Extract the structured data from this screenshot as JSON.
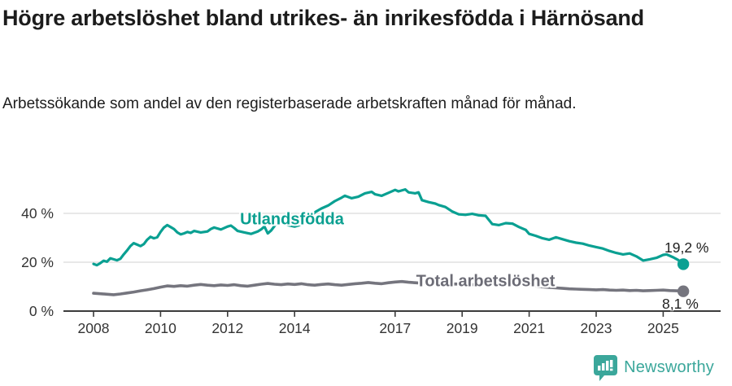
{
  "header": {
    "title": "Högre arbetslöshet bland utrikes- än inrikesfödda i Härnösand",
    "subtitle": "Arbetssökande som andel av den registerbaserade arbetskraften månad för månad."
  },
  "chart_data": {
    "type": "line",
    "title": "Högre arbetslöshet bland utrikes- än inrikesfödda i Härnösand",
    "subtitle": "Arbetssökande som andel av den registerbaserade arbetskraften månad för månad.",
    "xlabel": "",
    "ylabel": "",
    "x_axis": {
      "ticks": [
        "2008",
        "2010",
        "2012",
        "2014",
        "2017",
        "2019",
        "2021",
        "2023",
        "2025"
      ],
      "tick_values": [
        2008,
        2010,
        2012,
        2014,
        2017,
        2019,
        2021,
        2023,
        2025
      ],
      "range": [
        2007.1,
        2026.7
      ]
    },
    "y_axis": {
      "tick_labels": [
        "0 %",
        "20 %",
        "40 %"
      ],
      "tick_values": [
        0,
        20,
        40
      ],
      "gridline_values": [
        20,
        40
      ],
      "range": [
        0,
        55
      ],
      "unit": "%"
    },
    "grid": "horizontal-only",
    "legend_position": "inline-labels",
    "series": [
      {
        "name": "Utlandsfödda",
        "color": "#0aa092",
        "end_label": "19,2 %",
        "end_value": 19.2,
        "points": [
          [
            2008.0,
            19.3
          ],
          [
            2008.1,
            18.8
          ],
          [
            2008.2,
            19.6
          ],
          [
            2008.3,
            20.6
          ],
          [
            2008.4,
            20.2
          ],
          [
            2008.5,
            21.6
          ],
          [
            2008.6,
            21.2
          ],
          [
            2008.7,
            20.8
          ],
          [
            2008.8,
            21.4
          ],
          [
            2008.9,
            23.2
          ],
          [
            2009.0,
            24.8
          ],
          [
            2009.1,
            26.6
          ],
          [
            2009.2,
            27.8
          ],
          [
            2009.3,
            27.2
          ],
          [
            2009.4,
            26.6
          ],
          [
            2009.5,
            27.4
          ],
          [
            2009.6,
            29.2
          ],
          [
            2009.7,
            30.4
          ],
          [
            2009.8,
            29.8
          ],
          [
            2009.9,
            30.2
          ],
          [
            2010.0,
            32.4
          ],
          [
            2010.1,
            34.2
          ],
          [
            2010.2,
            35.2
          ],
          [
            2010.3,
            34.4
          ],
          [
            2010.4,
            33.6
          ],
          [
            2010.5,
            32.2
          ],
          [
            2010.6,
            31.4
          ],
          [
            2010.7,
            31.8
          ],
          [
            2010.8,
            32.4
          ],
          [
            2010.9,
            32.0
          ],
          [
            2011.0,
            32.8
          ],
          [
            2011.2,
            32.2
          ],
          [
            2011.4,
            32.6
          ],
          [
            2011.5,
            33.6
          ],
          [
            2011.6,
            34.2
          ],
          [
            2011.8,
            33.4
          ],
          [
            2012.0,
            34.6
          ],
          [
            2012.1,
            35.0
          ],
          [
            2012.2,
            34.0
          ],
          [
            2012.3,
            32.8
          ],
          [
            2012.5,
            32.2
          ],
          [
            2012.7,
            31.6
          ],
          [
            2012.9,
            32.6
          ],
          [
            2013.0,
            33.4
          ],
          [
            2013.1,
            34.6
          ],
          [
            2013.2,
            31.8
          ],
          [
            2013.3,
            33.0
          ],
          [
            2013.5,
            36.6
          ],
          [
            2013.6,
            36.0
          ],
          [
            2013.8,
            35.2
          ],
          [
            2014.0,
            34.6
          ],
          [
            2014.2,
            35.4
          ],
          [
            2014.4,
            36.8
          ],
          [
            2014.6,
            40.4
          ],
          [
            2014.8,
            42.0
          ],
          [
            2015.0,
            43.2
          ],
          [
            2015.2,
            45.0
          ],
          [
            2015.4,
            46.4
          ],
          [
            2015.5,
            47.2
          ],
          [
            2015.7,
            46.2
          ],
          [
            2015.9,
            46.8
          ],
          [
            2016.1,
            48.2
          ],
          [
            2016.3,
            48.8
          ],
          [
            2016.4,
            47.8
          ],
          [
            2016.6,
            47.2
          ],
          [
            2016.8,
            48.4
          ],
          [
            2017.0,
            49.6
          ],
          [
            2017.1,
            49.0
          ],
          [
            2017.3,
            49.8
          ],
          [
            2017.4,
            48.6
          ],
          [
            2017.6,
            48.2
          ],
          [
            2017.7,
            48.6
          ],
          [
            2017.8,
            45.4
          ],
          [
            2018.0,
            44.6
          ],
          [
            2018.2,
            44.0
          ],
          [
            2018.3,
            43.4
          ],
          [
            2018.5,
            42.6
          ],
          [
            2018.7,
            40.8
          ],
          [
            2018.9,
            39.6
          ],
          [
            2019.1,
            39.4
          ],
          [
            2019.3,
            39.8
          ],
          [
            2019.5,
            39.2
          ],
          [
            2019.7,
            39.0
          ],
          [
            2019.9,
            35.6
          ],
          [
            2020.1,
            35.2
          ],
          [
            2020.3,
            36.0
          ],
          [
            2020.5,
            35.8
          ],
          [
            2020.7,
            34.4
          ],
          [
            2020.9,
            33.2
          ],
          [
            2021.0,
            31.6
          ],
          [
            2021.2,
            30.8
          ],
          [
            2021.4,
            29.8
          ],
          [
            2021.6,
            29.2
          ],
          [
            2021.8,
            30.2
          ],
          [
            2022.0,
            29.4
          ],
          [
            2022.2,
            28.6
          ],
          [
            2022.4,
            28.0
          ],
          [
            2022.6,
            27.6
          ],
          [
            2022.8,
            26.8
          ],
          [
            2023.0,
            26.2
          ],
          [
            2023.2,
            25.6
          ],
          [
            2023.4,
            24.6
          ],
          [
            2023.6,
            23.8
          ],
          [
            2023.8,
            23.2
          ],
          [
            2024.0,
            23.6
          ],
          [
            2024.2,
            22.4
          ],
          [
            2024.4,
            20.7
          ],
          [
            2024.6,
            21.2
          ],
          [
            2024.8,
            21.8
          ],
          [
            2025.0,
            23.0
          ],
          [
            2025.1,
            23.2
          ],
          [
            2025.3,
            22.0
          ],
          [
            2025.45,
            20.9
          ],
          [
            2025.6,
            19.2
          ]
        ]
      },
      {
        "name": "Total arbetslöshet",
        "color": "#75757e",
        "end_label": "8,1 %",
        "end_value": 8.1,
        "points": [
          [
            2008.0,
            7.3
          ],
          [
            2008.2,
            7.1
          ],
          [
            2008.4,
            6.9
          ],
          [
            2008.6,
            6.7
          ],
          [
            2008.8,
            7.0
          ],
          [
            2009.0,
            7.4
          ],
          [
            2009.2,
            7.8
          ],
          [
            2009.4,
            8.3
          ],
          [
            2009.6,
            8.7
          ],
          [
            2009.8,
            9.2
          ],
          [
            2010.0,
            9.8
          ],
          [
            2010.2,
            10.3
          ],
          [
            2010.4,
            10.1
          ],
          [
            2010.6,
            10.4
          ],
          [
            2010.8,
            10.2
          ],
          [
            2011.0,
            10.6
          ],
          [
            2011.2,
            10.9
          ],
          [
            2011.4,
            10.6
          ],
          [
            2011.6,
            10.4
          ],
          [
            2011.8,
            10.7
          ],
          [
            2012.0,
            10.5
          ],
          [
            2012.2,
            10.8
          ],
          [
            2012.4,
            10.4
          ],
          [
            2012.6,
            10.2
          ],
          [
            2012.8,
            10.6
          ],
          [
            2013.0,
            11.0
          ],
          [
            2013.2,
            11.3
          ],
          [
            2013.4,
            11.0
          ],
          [
            2013.6,
            10.8
          ],
          [
            2013.8,
            11.1
          ],
          [
            2014.0,
            10.9
          ],
          [
            2014.2,
            11.2
          ],
          [
            2014.4,
            10.8
          ],
          [
            2014.6,
            10.6
          ],
          [
            2014.8,
            10.9
          ],
          [
            2015.0,
            11.1
          ],
          [
            2015.2,
            10.8
          ],
          [
            2015.4,
            10.6
          ],
          [
            2015.6,
            10.9
          ],
          [
            2015.8,
            11.2
          ],
          [
            2016.0,
            11.4
          ],
          [
            2016.2,
            11.7
          ],
          [
            2016.4,
            11.4
          ],
          [
            2016.6,
            11.2
          ],
          [
            2016.8,
            11.6
          ],
          [
            2017.0,
            11.9
          ],
          [
            2017.2,
            12.1
          ],
          [
            2017.4,
            11.8
          ],
          [
            2017.6,
            11.6
          ],
          [
            2017.8,
            11.4
          ],
          [
            2018.0,
            11.2
          ],
          [
            2018.2,
            11.4
          ],
          [
            2018.4,
            11.1
          ],
          [
            2018.6,
            10.9
          ],
          [
            2018.8,
            11.1
          ],
          [
            2019.0,
            10.9
          ],
          [
            2019.2,
            10.7
          ],
          [
            2019.4,
            10.9
          ],
          [
            2019.6,
            10.6
          ],
          [
            2019.8,
            10.8
          ],
          [
            2020.0,
            11.0
          ],
          [
            2020.2,
            11.4
          ],
          [
            2020.4,
            11.2
          ],
          [
            2020.6,
            11.0
          ],
          [
            2020.8,
            10.7
          ],
          [
            2021.0,
            10.4
          ],
          [
            2021.2,
            10.1
          ],
          [
            2021.4,
            9.9
          ],
          [
            2021.6,
            9.7
          ],
          [
            2021.8,
            9.5
          ],
          [
            2022.0,
            9.3
          ],
          [
            2022.2,
            9.1
          ],
          [
            2022.4,
            9.0
          ],
          [
            2022.6,
            8.9
          ],
          [
            2022.8,
            8.8
          ],
          [
            2023.0,
            8.7
          ],
          [
            2023.2,
            8.8
          ],
          [
            2023.4,
            8.6
          ],
          [
            2023.6,
            8.5
          ],
          [
            2023.8,
            8.6
          ],
          [
            2024.0,
            8.4
          ],
          [
            2024.2,
            8.5
          ],
          [
            2024.4,
            8.3
          ],
          [
            2024.6,
            8.4
          ],
          [
            2024.8,
            8.5
          ],
          [
            2025.0,
            8.6
          ],
          [
            2025.2,
            8.4
          ],
          [
            2025.4,
            8.3
          ],
          [
            2025.6,
            8.1
          ]
        ]
      }
    ],
    "colors": {
      "axis": "#3c3c3c",
      "axis_text": "#333333",
      "gridline": "#d9d9d9",
      "series_teal": "#0aa092",
      "series_gray": "#75757e",
      "brand_teal": "#3ba79b"
    }
  },
  "branding": {
    "name": "Newsworthy",
    "icon": "newsworthy-chart-marker-icon"
  }
}
